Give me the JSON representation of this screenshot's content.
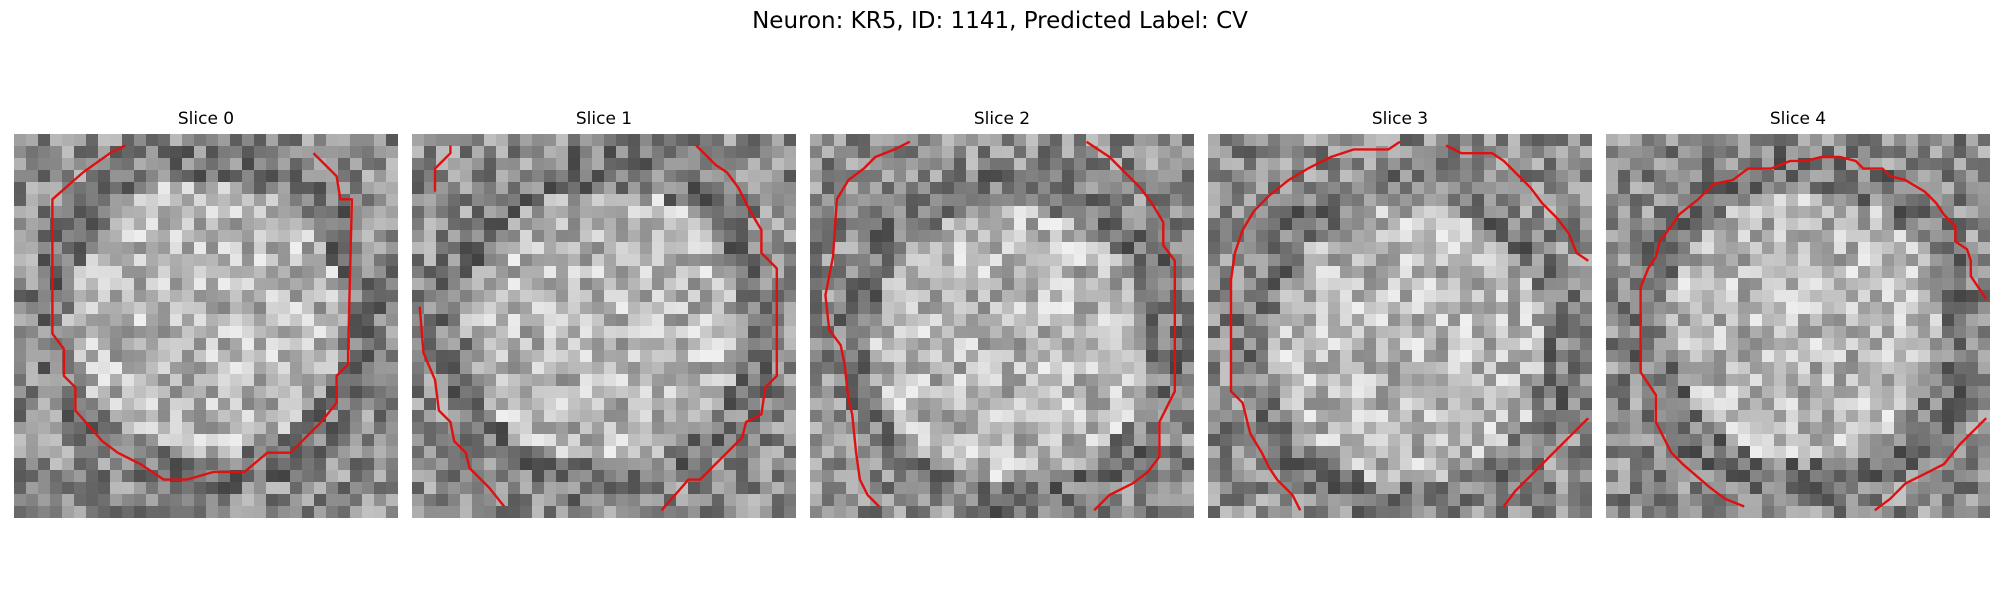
{
  "title": "Neuron: KR5, ID: 1141, Predicted Label: CV",
  "contour_color": "#e01010",
  "panels": [
    {
      "label": "Slice 0",
      "bright_center": [
        0.5,
        0.48
      ],
      "contours": [
        [
          [
            0.29,
            0.03
          ],
          [
            0.25,
            0.05
          ],
          [
            0.18,
            0.1
          ],
          [
            0.1,
            0.17
          ],
          [
            0.1,
            0.52
          ],
          [
            0.13,
            0.56
          ],
          [
            0.13,
            0.63
          ],
          [
            0.16,
            0.66
          ],
          [
            0.16,
            0.72
          ],
          [
            0.23,
            0.8
          ],
          [
            0.27,
            0.83
          ],
          [
            0.33,
            0.86
          ],
          [
            0.39,
            0.9
          ],
          [
            0.45,
            0.9
          ],
          [
            0.52,
            0.88
          ],
          [
            0.6,
            0.88
          ],
          [
            0.66,
            0.83
          ],
          [
            0.72,
            0.83
          ],
          [
            0.76,
            0.79
          ],
          [
            0.8,
            0.75
          ],
          [
            0.84,
            0.7
          ],
          [
            0.84,
            0.63
          ],
          [
            0.87,
            0.6
          ],
          [
            0.87,
            0.57
          ],
          [
            0.88,
            0.17
          ],
          [
            0.85,
            0.17
          ],
          [
            0.84,
            0.11
          ],
          [
            0.8,
            0.07
          ],
          [
            0.78,
            0.05
          ]
        ]
      ]
    },
    {
      "label": "Slice 1",
      "bright_center": [
        0.5,
        0.5
      ],
      "contours": [
        [
          [
            0.06,
            0.15
          ],
          [
            0.06,
            0.09
          ],
          [
            0.1,
            0.05
          ],
          [
            0.1,
            0.03
          ]
        ],
        [
          [
            0.74,
            0.03
          ],
          [
            0.79,
            0.08
          ],
          [
            0.82,
            0.1
          ],
          [
            0.85,
            0.14
          ],
          [
            0.88,
            0.2
          ],
          [
            0.91,
            0.25
          ],
          [
            0.91,
            0.31
          ],
          [
            0.95,
            0.35
          ],
          [
            0.95,
            0.63
          ],
          [
            0.92,
            0.66
          ],
          [
            0.91,
            0.73
          ],
          [
            0.87,
            0.75
          ],
          [
            0.86,
            0.79
          ],
          [
            0.8,
            0.85
          ],
          [
            0.75,
            0.9
          ],
          [
            0.72,
            0.9
          ],
          [
            0.65,
            0.98
          ]
        ],
        [
          [
            0.02,
            0.45
          ],
          [
            0.03,
            0.57
          ],
          [
            0.06,
            0.64
          ],
          [
            0.07,
            0.72
          ],
          [
            0.1,
            0.75
          ],
          [
            0.11,
            0.8
          ],
          [
            0.14,
            0.83
          ],
          [
            0.15,
            0.87
          ],
          [
            0.2,
            0.92
          ],
          [
            0.24,
            0.97
          ]
        ]
      ]
    },
    {
      "label": "Slice 2",
      "bright_center": [
        0.52,
        0.55
      ],
      "contours": [
        [
          [
            0.26,
            0.02
          ],
          [
            0.22,
            0.04
          ],
          [
            0.17,
            0.06
          ],
          [
            0.14,
            0.09
          ],
          [
            0.1,
            0.12
          ],
          [
            0.07,
            0.17
          ],
          [
            0.06,
            0.32
          ],
          [
            0.04,
            0.42
          ],
          [
            0.05,
            0.51
          ],
          [
            0.08,
            0.55
          ],
          [
            0.09,
            0.6
          ],
          [
            0.1,
            0.69
          ],
          [
            0.11,
            0.73
          ],
          [
            0.12,
            0.83
          ],
          [
            0.13,
            0.9
          ],
          [
            0.15,
            0.94
          ],
          [
            0.18,
            0.97
          ]
        ],
        [
          [
            0.72,
            0.02
          ],
          [
            0.78,
            0.06
          ],
          [
            0.82,
            0.1
          ],
          [
            0.86,
            0.14
          ],
          [
            0.89,
            0.18
          ],
          [
            0.92,
            0.23
          ],
          [
            0.92,
            0.29
          ],
          [
            0.95,
            0.33
          ],
          [
            0.95,
            0.67
          ],
          [
            0.93,
            0.71
          ],
          [
            0.91,
            0.75
          ],
          [
            0.91,
            0.84
          ],
          [
            0.88,
            0.88
          ],
          [
            0.84,
            0.91
          ],
          [
            0.78,
            0.94
          ],
          [
            0.74,
            0.98
          ]
        ]
      ]
    },
    {
      "label": "Slice 3",
      "bright_center": [
        0.52,
        0.55
      ],
      "contours": [
        [
          [
            0.5,
            0.02
          ],
          [
            0.47,
            0.04
          ],
          [
            0.38,
            0.04
          ],
          [
            0.32,
            0.06
          ],
          [
            0.26,
            0.09
          ],
          [
            0.21,
            0.12
          ],
          [
            0.16,
            0.16
          ],
          [
            0.12,
            0.2
          ],
          [
            0.09,
            0.25
          ],
          [
            0.07,
            0.31
          ],
          [
            0.06,
            0.38
          ],
          [
            0.06,
            0.67
          ],
          [
            0.09,
            0.7
          ],
          [
            0.11,
            0.78
          ],
          [
            0.14,
            0.83
          ],
          [
            0.16,
            0.87
          ],
          [
            0.18,
            0.9
          ],
          [
            0.22,
            0.94
          ],
          [
            0.24,
            0.98
          ]
        ],
        [
          [
            0.62,
            0.03
          ],
          [
            0.66,
            0.05
          ],
          [
            0.74,
            0.05
          ],
          [
            0.77,
            0.07
          ],
          [
            0.8,
            0.1
          ],
          [
            0.84,
            0.14
          ],
          [
            0.87,
            0.18
          ],
          [
            0.91,
            0.22
          ],
          [
            0.94,
            0.26
          ],
          [
            0.96,
            0.31
          ],
          [
            0.99,
            0.33
          ]
        ],
        [
          [
            0.99,
            0.74
          ],
          [
            0.96,
            0.77
          ],
          [
            0.93,
            0.8
          ],
          [
            0.88,
            0.85
          ],
          [
            0.84,
            0.89
          ],
          [
            0.8,
            0.93
          ],
          [
            0.77,
            0.97
          ]
        ]
      ]
    },
    {
      "label": "Slice 4",
      "bright_center": [
        0.52,
        0.5
      ],
      "contours": [
        [
          [
            0.36,
            0.97
          ],
          [
            0.31,
            0.95
          ],
          [
            0.27,
            0.92
          ],
          [
            0.2,
            0.86
          ],
          [
            0.17,
            0.83
          ],
          [
            0.15,
            0.79
          ],
          [
            0.13,
            0.75
          ],
          [
            0.13,
            0.68
          ],
          [
            0.11,
            0.65
          ],
          [
            0.09,
            0.62
          ],
          [
            0.09,
            0.4
          ],
          [
            0.11,
            0.35
          ],
          [
            0.13,
            0.32
          ],
          [
            0.14,
            0.28
          ],
          [
            0.17,
            0.24
          ],
          [
            0.19,
            0.21
          ],
          [
            0.24,
            0.17
          ],
          [
            0.28,
            0.13
          ],
          [
            0.33,
            0.12
          ],
          [
            0.37,
            0.09
          ],
          [
            0.43,
            0.09
          ],
          [
            0.48,
            0.07
          ],
          [
            0.52,
            0.07
          ],
          [
            0.56,
            0.06
          ],
          [
            0.61,
            0.06
          ],
          [
            0.65,
            0.07
          ],
          [
            0.67,
            0.09
          ],
          [
            0.72,
            0.09
          ],
          [
            0.74,
            0.11
          ],
          [
            0.78,
            0.12
          ],
          [
            0.83,
            0.15
          ],
          [
            0.86,
            0.18
          ],
          [
            0.88,
            0.21
          ],
          [
            0.91,
            0.24
          ],
          [
            0.91,
            0.28
          ],
          [
            0.94,
            0.3
          ],
          [
            0.95,
            0.33
          ],
          [
            0.95,
            0.37
          ],
          [
            0.97,
            0.4
          ],
          [
            0.99,
            0.43
          ]
        ],
        [
          [
            0.99,
            0.74
          ],
          [
            0.96,
            0.77
          ],
          [
            0.92,
            0.81
          ],
          [
            0.88,
            0.86
          ],
          [
            0.82,
            0.89
          ],
          [
            0.78,
            0.91
          ],
          [
            0.74,
            0.95
          ],
          [
            0.7,
            0.98
          ]
        ]
      ]
    }
  ]
}
